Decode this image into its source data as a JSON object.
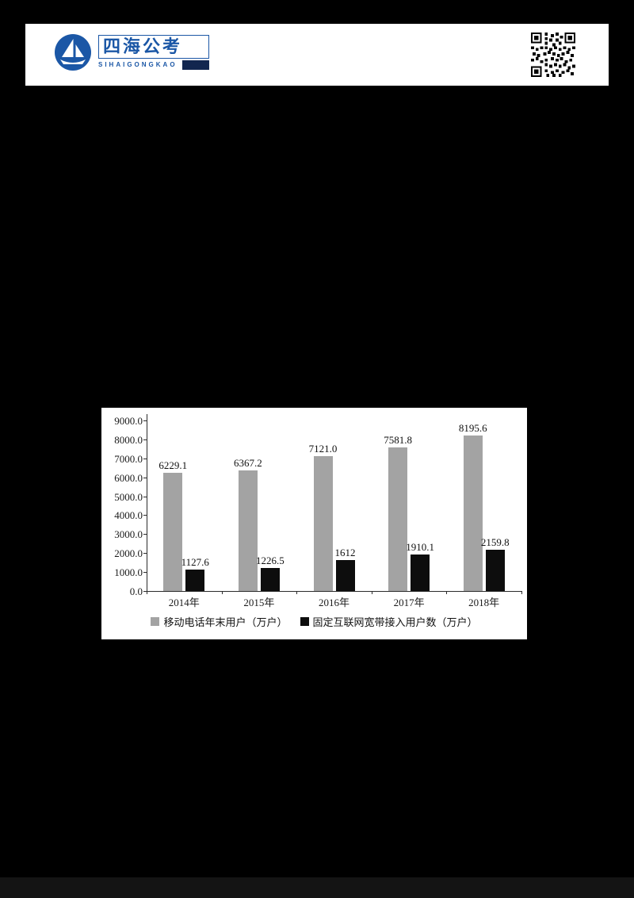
{
  "header": {
    "brand_cn": "四海公考",
    "brand_en": "SIHAIGONGKAO",
    "brand_color": "#1b57a6"
  },
  "chart_data": {
    "type": "bar",
    "title": "",
    "xlabel": "",
    "ylabel": "",
    "categories": [
      "2014年",
      "2015年",
      "2016年",
      "2017年",
      "2018年"
    ],
    "series": [
      {
        "name": "移动电话年末用户（万户）",
        "color": "#a3a3a3",
        "values": [
          6229.1,
          6367.2,
          7121.0,
          7581.8,
          8195.6
        ],
        "labels": [
          "6229.1",
          "6367.2",
          "7121.0",
          "7581.8",
          "8195.6"
        ]
      },
      {
        "name": "固定互联网宽带接入用户数（万户）",
        "color": "#0d0d0d",
        "values": [
          1127.6,
          1226.5,
          1612,
          1910.1,
          2159.8
        ],
        "labels": [
          "1127.6",
          "1226.5",
          "1612",
          "1910.1",
          "2159.8"
        ]
      }
    ],
    "ylim": [
      0,
      9000
    ],
    "ytick_step": 1000,
    "ytick_label_format": "one-decimal",
    "grid": false,
    "legend_position": "bottom"
  }
}
